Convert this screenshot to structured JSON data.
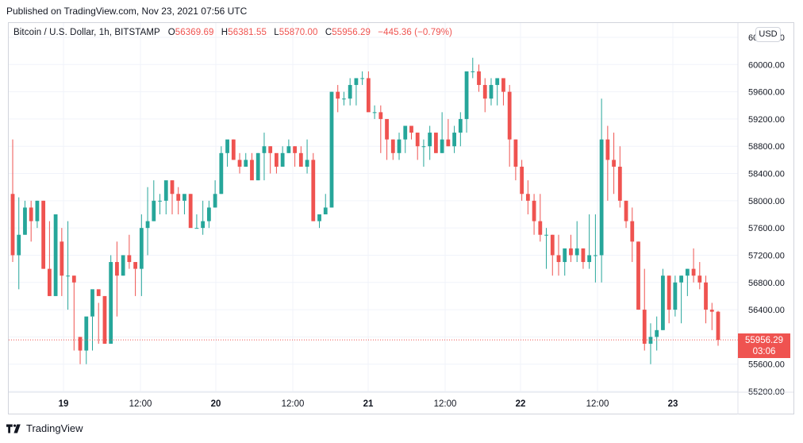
{
  "header": {
    "published": "Published on TradingView.com, Nov 23, 2021 07:56 UTC"
  },
  "legend": {
    "symbol": "Bitcoin / U.S. Dollar, 1h, BITSTAMP",
    "o_label": "O",
    "o_value": "56369.69",
    "h_label": "H",
    "h_value": "56381.55",
    "l_label": "L",
    "l_value": "55870.00",
    "c_label": "C",
    "c_value": "55956.29",
    "change": "−445.36 (−0.79%)"
  },
  "currency_button": "USD",
  "last_price": {
    "price": "55956.29",
    "countdown": "03:06"
  },
  "footer": {
    "brand": "TradingView"
  },
  "colors": {
    "up": "#26a69a",
    "down": "#ef5350",
    "grid": "#f0f3fa",
    "axis_text": "#131722"
  },
  "chart_data": {
    "type": "candlestick",
    "ylim": [
      55200,
      60400
    ],
    "y_ticks": [
      "60400.00",
      "60000.00",
      "59600.00",
      "59200.00",
      "58800.00",
      "58400.00",
      "58000.00",
      "57600.00",
      "57200.00",
      "56800.00",
      "56400.00",
      "56000.00",
      "55600.00",
      "55200.00"
    ],
    "x_ticks": [
      "19",
      "12:00",
      "20",
      "12:00",
      "21",
      "12:00",
      "22",
      "12:00",
      "23"
    ],
    "last_price": 55956.29,
    "candles_ohlc": [
      [
        58100,
        58900,
        57100,
        57200
      ],
      [
        57200,
        58050,
        56700,
        57500
      ],
      [
        57500,
        58000,
        57500,
        57900
      ],
      [
        57900,
        58000,
        57400,
        57700
      ],
      [
        57700,
        58000,
        57600,
        58000
      ],
      [
        58000,
        58000,
        57000,
        57000
      ],
      [
        57000,
        57700,
        56600,
        56600
      ],
      [
        56600,
        57600,
        56600,
        57800
      ],
      [
        57400,
        57600,
        56600,
        56900
      ],
      [
        56900,
        57700,
        56400,
        56900
      ],
      [
        56900,
        56900,
        55800,
        56800
      ],
      [
        56000,
        56000,
        55600,
        55800
      ],
      [
        55800,
        56100,
        55600,
        56300
      ],
      [
        56300,
        56300,
        55800,
        56700
      ],
      [
        56700,
        56500,
        55900,
        56600
      ],
      [
        56600,
        56600,
        55900,
        55900
      ],
      [
        55900,
        57200,
        55900,
        57100
      ],
      [
        57100,
        57400,
        56300,
        56900
      ],
      [
        56900,
        57200,
        56900,
        57200
      ],
      [
        57200,
        57500,
        57000,
        57100
      ],
      [
        57100,
        57000,
        56600,
        57000
      ],
      [
        57000,
        57800,
        56600,
        57600
      ],
      [
        57600,
        58200,
        57200,
        57700
      ],
      [
        57700,
        58300,
        57700,
        58000
      ],
      [
        58000,
        58100,
        57800,
        58000
      ],
      [
        58000,
        58200,
        57800,
        58300
      ],
      [
        58300,
        58300,
        57800,
        58100
      ],
      [
        58100,
        58200,
        57800,
        58000
      ],
      [
        58000,
        58000,
        57800,
        58100
      ],
      [
        58100,
        58100,
        57800,
        57600
      ],
      [
        57600,
        57800,
        57600,
        57600
      ],
      [
        57600,
        58000,
        57500,
        57700
      ],
      [
        57700,
        58000,
        57600,
        57900
      ],
      [
        57900,
        58300,
        57900,
        58100
      ],
      [
        58100,
        58800,
        58100,
        58700
      ],
      [
        58700,
        58800,
        58500,
        58900
      ],
      [
        58900,
        58900,
        58600,
        58600
      ],
      [
        58600,
        58700,
        58400,
        58500
      ],
      [
        58500,
        58700,
        58500,
        58600
      ],
      [
        58600,
        58700,
        58400,
        58300
      ],
      [
        58300,
        58700,
        58300,
        58700
      ],
      [
        58700,
        59000,
        58300,
        58800
      ],
      [
        58800,
        58800,
        58400,
        58700
      ],
      [
        58700,
        58600,
        58400,
        58500
      ],
      [
        58500,
        58800,
        58500,
        58700
      ],
      [
        58700,
        58900,
        58700,
        58800
      ],
      [
        58800,
        58800,
        58500,
        58700
      ],
      [
        58700,
        58800,
        58500,
        58500
      ],
      [
        58500,
        58900,
        58400,
        58600
      ],
      [
        58600,
        58700,
        57700,
        57700
      ],
      [
        57700,
        57700,
        57600,
        57800
      ],
      [
        57800,
        58100,
        57800,
        57900
      ],
      [
        57900,
        59600,
        57900,
        59600
      ],
      [
        59600,
        59700,
        59300,
        59500
      ],
      [
        59500,
        59600,
        59400,
        59500
      ],
      [
        59500,
        59800,
        59400,
        59700
      ],
      [
        59700,
        59800,
        59400,
        59800
      ],
      [
        59800,
        59900,
        59700,
        59800
      ],
      [
        59800,
        59900,
        59500,
        59300
      ],
      [
        59300,
        59400,
        59200,
        59300
      ],
      [
        59300,
        59400,
        58700,
        59200
      ],
      [
        59200,
        59100,
        58600,
        58900
      ],
      [
        58900,
        58900,
        58600,
        58700
      ],
      [
        58700,
        59000,
        58600,
        58900
      ],
      [
        58900,
        59100,
        58700,
        59100
      ],
      [
        59100,
        59100,
        58900,
        59000
      ],
      [
        59000,
        59000,
        58600,
        58800
      ],
      [
        58800,
        58900,
        58500,
        58800
      ],
      [
        58800,
        59100,
        58600,
        59000
      ],
      [
        59000,
        59000,
        58700,
        58700
      ],
      [
        58700,
        59300,
        58700,
        58900
      ],
      [
        58900,
        59200,
        58800,
        58800
      ],
      [
        58800,
        59100,
        58700,
        59000
      ],
      [
        59000,
        59300,
        58800,
        59200
      ],
      [
        59200,
        59300,
        59000,
        59900
      ],
      [
        59900,
        60100,
        59800,
        59900
      ],
      [
        59900,
        60000,
        59600,
        59700
      ],
      [
        59700,
        59800,
        59300,
        59500
      ],
      [
        59500,
        59800,
        59400,
        59700
      ],
      [
        59700,
        59800,
        59400,
        59800
      ],
      [
        59800,
        59800,
        59400,
        59600
      ],
      [
        59600,
        59700,
        58500,
        58900
      ],
      [
        58900,
        58900,
        58300,
        58500
      ],
      [
        58500,
        58600,
        58000,
        58100
      ],
      [
        58100,
        58300,
        57800,
        58000
      ],
      [
        58000,
        58100,
        57500,
        57700
      ],
      [
        57700,
        58100,
        57400,
        57500
      ],
      [
        57500,
        57600,
        57000,
        57500
      ],
      [
        57500,
        57500,
        56900,
        57200
      ],
      [
        57200,
        57500,
        56900,
        57100
      ],
      [
        57100,
        57200,
        56900,
        57300
      ],
      [
        57300,
        57500,
        57100,
        57200
      ],
      [
        57200,
        57700,
        57100,
        57300
      ],
      [
        57300,
        57300,
        57000,
        57100
      ],
      [
        57100,
        57800,
        57000,
        57200
      ],
      [
        57200,
        57800,
        56800,
        57200
      ],
      [
        57200,
        59500,
        56800,
        58900
      ],
      [
        58900,
        59100,
        58000,
        58600
      ],
      [
        58600,
        59000,
        58100,
        58500
      ],
      [
        58500,
        58800,
        57900,
        58000
      ],
      [
        58000,
        58000,
        57600,
        57700
      ],
      [
        57700,
        57900,
        57100,
        57400
      ],
      [
        57400,
        57400,
        56400,
        56400
      ],
      [
        56400,
        57000,
        55800,
        55900
      ],
      [
        55900,
        56200,
        55600,
        56000
      ],
      [
        56000,
        56300,
        55800,
        56100
      ],
      [
        56100,
        57000,
        56100,
        56900
      ],
      [
        56900,
        56900,
        56200,
        56400
      ],
      [
        56400,
        56900,
        56300,
        56800
      ],
      [
        56800,
        56900,
        56200,
        56900
      ],
      [
        56900,
        57000,
        56600,
        57000
      ],
      [
        57000,
        57300,
        56800,
        56900
      ],
      [
        56900,
        57100,
        56700,
        56800
      ],
      [
        56800,
        56900,
        56200,
        56400
      ],
      [
        56400,
        56500,
        56100,
        56370
      ],
      [
        56370,
        56382,
        55870,
        55956
      ]
    ]
  }
}
